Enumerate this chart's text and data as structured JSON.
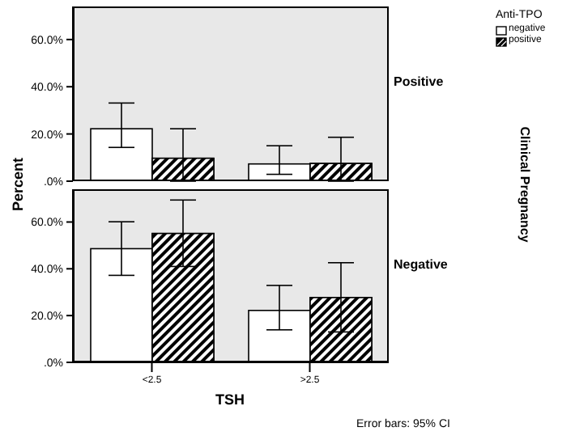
{
  "chart_data": [
    {
      "type": "bar",
      "title": "Positive",
      "ylabel": "Percent",
      "legend_title": "Anti-TPO",
      "legend": "top right",
      "tick_labels": "y",
      "categories": [
        null,
        null
      ],
      "annotations": [
        "Clinical Pregnancy"
      ],
      "ylim": [
        0,
        74
      ],
      "yticks": [
        {
          "value": 0,
          "label": ".0%"
        },
        {
          "value": 20,
          "label": "20.0%"
        },
        {
          "value": 40,
          "label": "40.0%"
        },
        {
          "value": 60,
          "label": "60.0%"
        }
      ],
      "series": [
        {
          "name": "negative",
          "color": "#ffffff",
          "values": [
            22.2,
            7.3
          ],
          "errors": [
            [
              14.3,
              33.1
            ],
            [
              2.9,
              15
            ]
          ]
        },
        {
          "name": "positive",
          "color": "#000000",
          "values": [
            9.7,
            7.5
          ],
          "errors": [
            [
              0,
              22.2
            ],
            [
              0,
              18.6
            ]
          ]
        }
      ]
    },
    {
      "type": "bar",
      "title": "Negative",
      "xlabel": "TSH",
      "categories": [
        "<2.5",
        ">2.5"
      ],
      "annotations": [
        "Error bars: 95% CI"
      ],
      "ylim": [
        0,
        74
      ],
      "yticks": [
        {
          "value": 0,
          "label": ".0%"
        },
        {
          "value": 20,
          "label": "20.0%"
        },
        {
          "value": 40,
          "label": "40.0%"
        },
        {
          "value": 60,
          "label": "60.0%"
        }
      ],
      "series": [
        {
          "color": "#ffffff",
          "values": [
            48.6,
            22.2
          ],
          "errors": [
            [
              37.2,
              60.1
            ],
            [
              13.9,
              32.9
            ]
          ]
        },
        {
          "color": "#000000",
          "values": [
            55.1,
            27.7
          ],
          "errors": [
            [
              41,
              69.4
            ],
            [
              13,
              42.6
            ]
          ]
        }
      ]
    }
  ]
}
